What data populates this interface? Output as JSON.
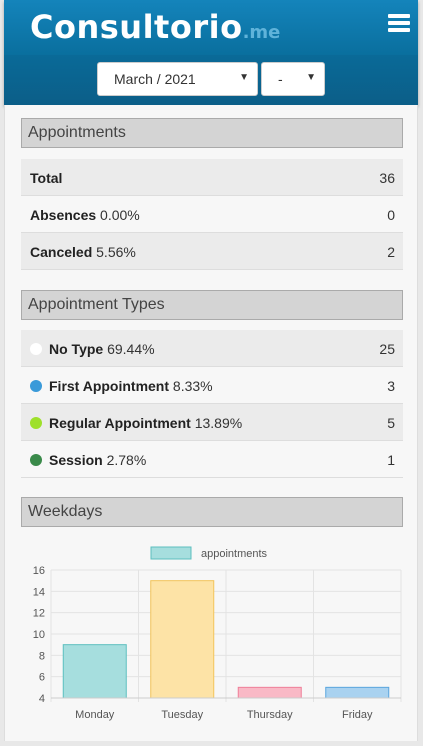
{
  "header": {
    "brand": "Consultorio",
    "brand_tld": ".me",
    "month_select": "March / 2021",
    "day_select": "-"
  },
  "appointments": {
    "title": "Appointments",
    "rows": [
      {
        "label": "Total",
        "pct": "",
        "value": "36"
      },
      {
        "label": "Absences",
        "pct": "0.00%",
        "value": "0"
      },
      {
        "label": "Canceled",
        "pct": "5.56%",
        "value": "2"
      }
    ]
  },
  "types": {
    "title": "Appointment Types",
    "rows": [
      {
        "label": "No Type",
        "pct": "69.44%",
        "value": "25",
        "color": "#ffffff"
      },
      {
        "label": "First Appointment",
        "pct": "8.33%",
        "value": "3",
        "color": "#3a9ad9"
      },
      {
        "label": "Regular Appointment",
        "pct": "13.89%",
        "value": "5",
        "color": "#9ee02a"
      },
      {
        "label": "Session",
        "pct": "2.78%",
        "value": "1",
        "color": "#3a8a4a"
      }
    ]
  },
  "weekdays": {
    "title": "Weekdays"
  },
  "chart_data": {
    "type": "bar",
    "title": "",
    "xlabel": "",
    "ylabel": "",
    "categories": [
      "Monday",
      "Tuesday",
      "Thursday",
      "Friday"
    ],
    "series": [
      {
        "name": "appointments",
        "values": [
          9,
          15,
          5,
          5
        ]
      }
    ],
    "bar_colors": [
      "#a6dede",
      "#fde3a6",
      "#f9b9c6",
      "#a9d2f0"
    ],
    "bar_border_colors": [
      "#5cbfbf",
      "#f2c45a",
      "#ef7f98",
      "#5aa5dd"
    ],
    "ylim": [
      4,
      16
    ],
    "yticks": [
      4,
      6,
      8,
      10,
      12,
      14,
      16
    ],
    "grid": true,
    "legend": "top"
  }
}
